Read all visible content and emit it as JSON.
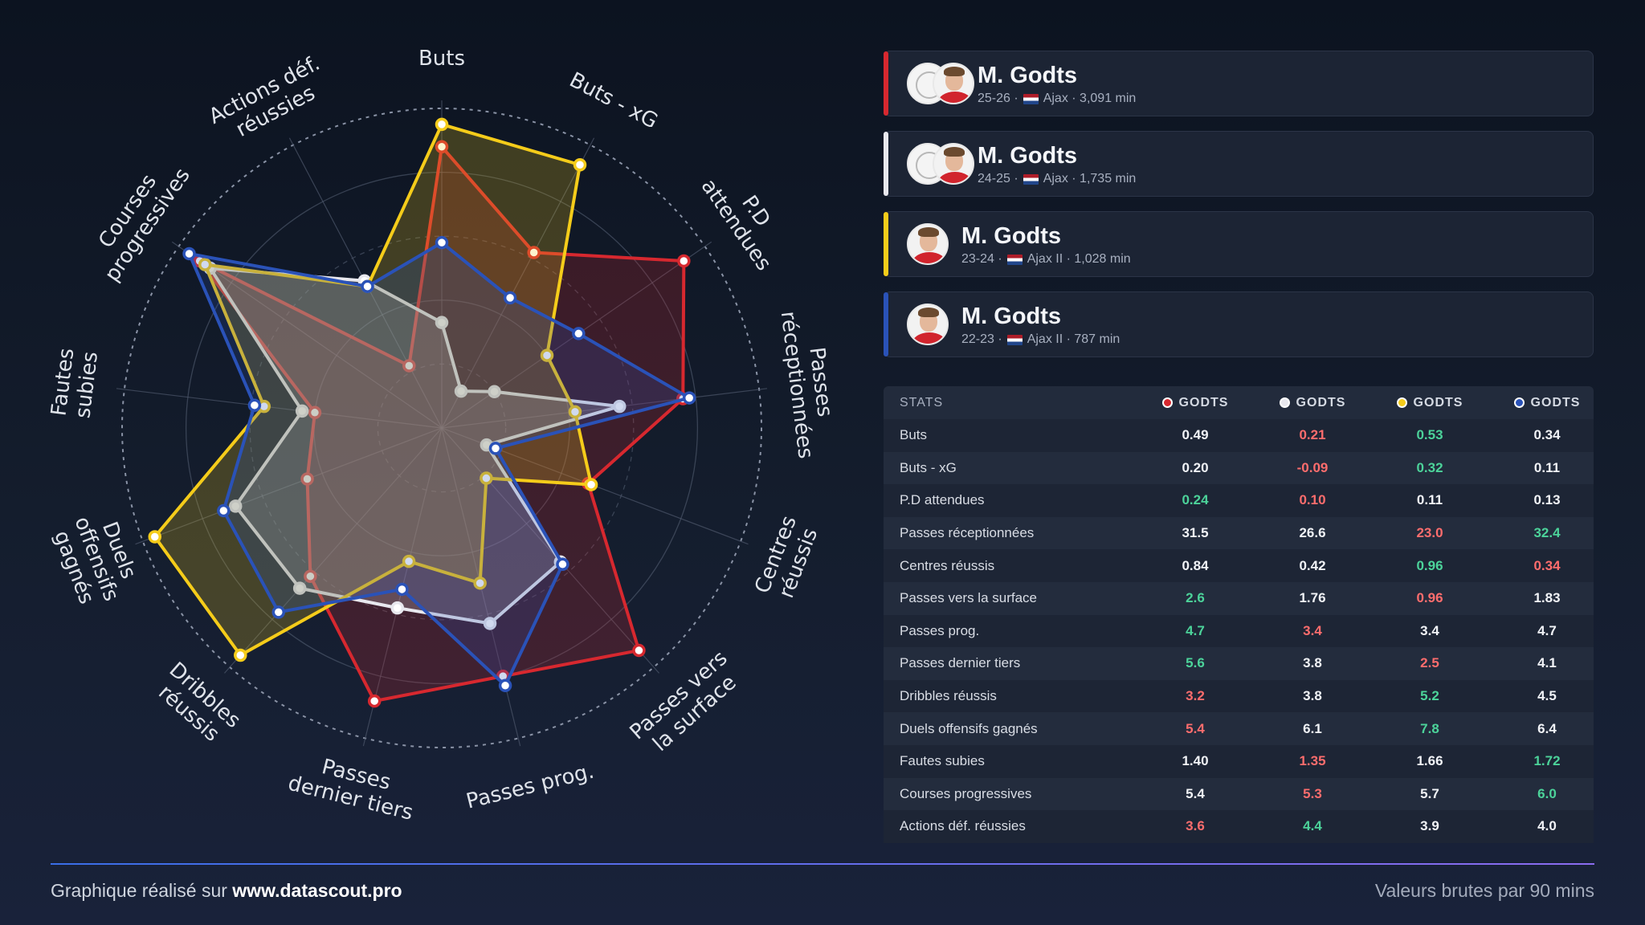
{
  "chart_data": {
    "type": "radar",
    "title": "",
    "axes": [
      "Buts",
      "Buts - xG",
      "P.D attendues",
      "Passes réceptionnées",
      "Centres réussis",
      "Passes vers la surface",
      "Passes prog.",
      "Passes dernier tiers",
      "Dribbles réussis",
      "Duels offensifs gagnés",
      "Fautes subies",
      "Courses progressives",
      "Actions déf. réussies"
    ],
    "axis_label_lines": [
      [
        "Buts"
      ],
      [
        "Buts - xG"
      ],
      [
        "P.D",
        "attendues"
      ],
      [
        "Passes",
        "réceptionnées"
      ],
      [
        "Centres",
        "réussis"
      ],
      [
        "Passes vers",
        "la surface"
      ],
      [
        "Passes prog."
      ],
      [
        "Passes",
        "dernier tiers"
      ],
      [
        "Dribbles",
        "réussis"
      ],
      [
        "Duels",
        "offensifs",
        "gagnés"
      ],
      [
        "Fautes",
        "subies"
      ],
      [
        "Courses",
        "progressives"
      ],
      [
        "Actions déf.",
        "réussies"
      ]
    ],
    "series_note": "normalized radial percentile (0-100) read from chart",
    "series": [
      {
        "name": "25-26",
        "color": "#d7282f",
        "values": [
          88,
          62,
          92,
          76,
          49,
          93,
          80,
          88,
          62,
          45,
          40,
          92,
          22
        ]
      },
      {
        "name": "24-25",
        "color": "#e8e8ee",
        "values": [
          33,
          13,
          20,
          56,
          15,
          56,
          63,
          58,
          67,
          69,
          44,
          88,
          52
        ]
      },
      {
        "name": "23-24",
        "color": "#f5cc1a",
        "values": [
          95,
          93,
          40,
          42,
          50,
          21,
          50,
          43,
          95,
          96,
          56,
          90,
          50
        ]
      },
      {
        "name": "22-23",
        "color": "#2a52b8",
        "values": [
          58,
          46,
          52,
          78,
          18,
          57,
          83,
          52,
          77,
          73,
          59,
          96,
          50
        ]
      }
    ],
    "rlim": [
      0,
      100
    ],
    "grid": true
  },
  "players": [
    {
      "name": "M. Godts",
      "season": "25-26",
      "club": "Ajax",
      "minutes": "3,091 min",
      "color": "#d7282f",
      "icons": [
        "club-logo",
        "player-photo"
      ]
    },
    {
      "name": "M. Godts",
      "season": "24-25",
      "club": "Ajax",
      "minutes": "1,735 min",
      "color": "#e8e8ee",
      "icons": [
        "club-logo",
        "player-photo"
      ]
    },
    {
      "name": "M. Godts",
      "season": "23-24",
      "club": "Ajax II",
      "minutes": "1,028 min",
      "color": "#f5cc1a",
      "icons": [
        "player-photo"
      ]
    },
    {
      "name": "M. Godts",
      "season": "22-23",
      "club": "Ajax II",
      "minutes": "787 min",
      "color": "#2a52b8",
      "icons": [
        "player-photo"
      ]
    }
  ],
  "meta_separator": "·",
  "stats_table": {
    "header": "STATS",
    "columns": [
      {
        "label": "GODTS",
        "color": "#d7282f"
      },
      {
        "label": "GODTS",
        "color": "#e8e8ee"
      },
      {
        "label": "GODTS",
        "color": "#f5cc1a"
      },
      {
        "label": "GODTS",
        "color": "#2a52b8"
      }
    ],
    "rows": [
      {
        "label": "Buts",
        "values": [
          "0.49",
          "0.21",
          "0.53",
          "0.34"
        ],
        "status": [
          "mid",
          "worst",
          "best",
          "mid"
        ]
      },
      {
        "label": "Buts - xG",
        "values": [
          "0.20",
          "-0.09",
          "0.32",
          "0.11"
        ],
        "status": [
          "mid",
          "worst",
          "best",
          "mid"
        ]
      },
      {
        "label": "P.D attendues",
        "values": [
          "0.24",
          "0.10",
          "0.11",
          "0.13"
        ],
        "status": [
          "best",
          "worst",
          "mid",
          "mid"
        ]
      },
      {
        "label": "Passes réceptionnées",
        "values": [
          "31.5",
          "26.6",
          "23.0",
          "32.4"
        ],
        "status": [
          "mid",
          "mid",
          "worst",
          "best"
        ]
      },
      {
        "label": "Centres réussis",
        "values": [
          "0.84",
          "0.42",
          "0.96",
          "0.34"
        ],
        "status": [
          "mid",
          "mid",
          "best",
          "worst"
        ]
      },
      {
        "label": "Passes vers la surface",
        "values": [
          "2.6",
          "1.76",
          "0.96",
          "1.83"
        ],
        "status": [
          "best",
          "mid",
          "worst",
          "mid"
        ]
      },
      {
        "label": "Passes prog.",
        "values": [
          "4.7",
          "3.4",
          "3.4",
          "4.7"
        ],
        "status": [
          "best",
          "worst",
          "mid",
          "mid"
        ]
      },
      {
        "label": "Passes dernier tiers",
        "values": [
          "5.6",
          "3.8",
          "2.5",
          "4.1"
        ],
        "status": [
          "best",
          "mid",
          "worst",
          "mid"
        ]
      },
      {
        "label": "Dribbles réussis",
        "values": [
          "3.2",
          "3.8",
          "5.2",
          "4.5"
        ],
        "status": [
          "worst",
          "mid",
          "best",
          "mid"
        ]
      },
      {
        "label": "Duels offensifs gagnés",
        "values": [
          "5.4",
          "6.1",
          "7.8",
          "6.4"
        ],
        "status": [
          "worst",
          "mid",
          "best",
          "mid"
        ]
      },
      {
        "label": "Fautes subies",
        "values": [
          "1.40",
          "1.35",
          "1.66",
          "1.72"
        ],
        "status": [
          "mid",
          "worst",
          "mid",
          "best"
        ]
      },
      {
        "label": "Courses progressives",
        "values": [
          "5.4",
          "5.3",
          "5.7",
          "6.0"
        ],
        "status": [
          "mid",
          "worst",
          "mid",
          "best"
        ]
      },
      {
        "label": "Actions déf. réussies",
        "values": [
          "3.6",
          "4.4",
          "3.9",
          "4.0"
        ],
        "status": [
          "worst",
          "best",
          "mid",
          "mid"
        ]
      }
    ]
  },
  "footer": {
    "prefix": "Graphique réalisé sur ",
    "site": "www.datascout.pro",
    "note": "Valeurs brutes par 90 mins"
  }
}
